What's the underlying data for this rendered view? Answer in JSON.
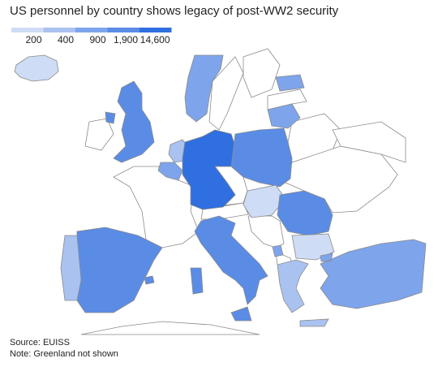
{
  "chart_data": {
    "type": "choropleth",
    "title": "US personnel by country shows legacy of post-WW2 security",
    "legend_ticks": [
      200,
      400,
      900,
      {
        "value": 1900,
        "label": "1,900"
      },
      {
        "value": 14600,
        "label": "14,600"
      }
    ],
    "colors": [
      "#cfdcf5",
      "#a9c2f0",
      "#7ea5eb",
      "#5a8ce6",
      "#2f6fe0"
    ],
    "values": [
      100,
      600,
      1500,
      300,
      600,
      14600,
      1500,
      600,
      600,
      100,
      1500,
      100,
      600,
      1500,
      1500,
      300,
      300,
      600
    ],
    "source": "Source: EUISS",
    "note": "Note: Greenland not shown"
  }
}
